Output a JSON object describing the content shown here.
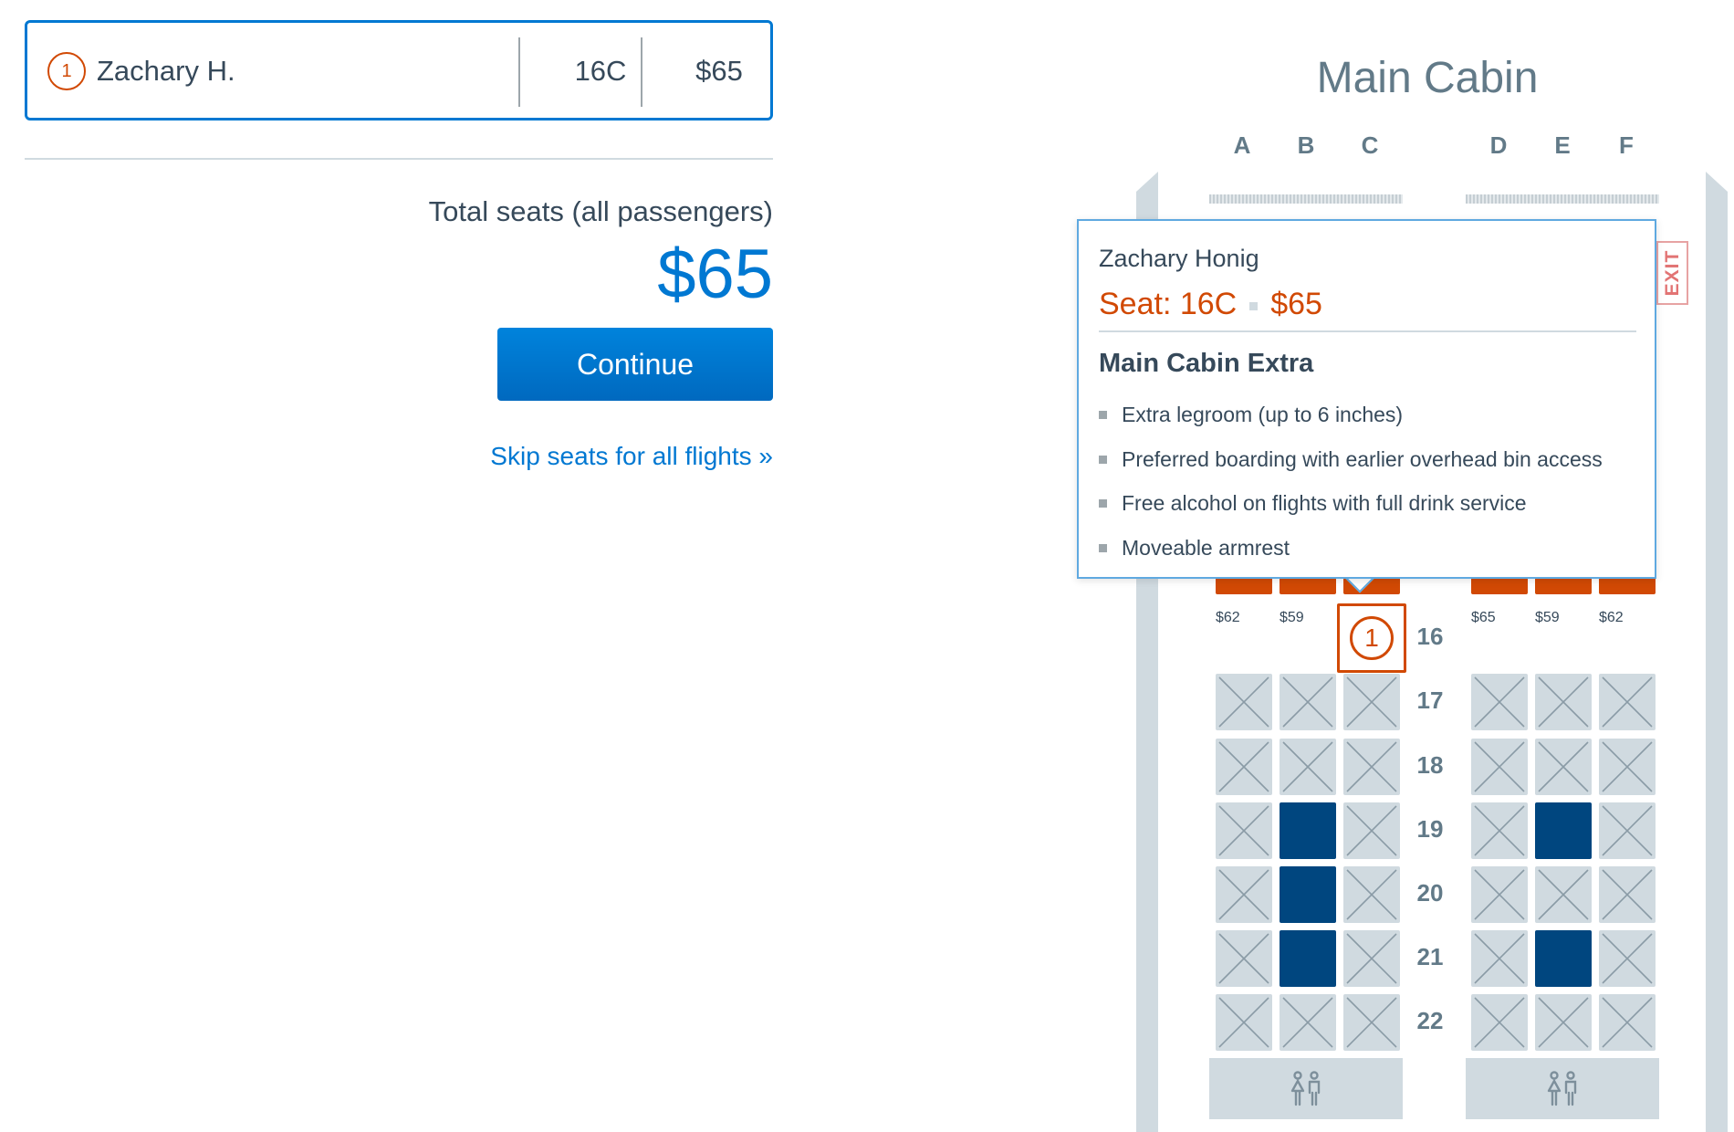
{
  "passenger": {
    "number": "1",
    "name": "Zachary H.",
    "seat": "16C",
    "price": "$65"
  },
  "summary": {
    "total_label": "Total seats (all passengers)",
    "total_amount": "$65",
    "continue_label": "Continue",
    "skip_label": "Skip seats for all flights »"
  },
  "seatmap": {
    "cabin_title": "Main Cabin",
    "columns": [
      "A",
      "B",
      "C",
      "D",
      "E",
      "F"
    ],
    "exit_label": "EXIT",
    "rows": [
      {
        "number": "16",
        "seats": [
          {
            "col": "A",
            "status": "available",
            "price": "$62"
          },
          {
            "col": "B",
            "status": "available",
            "price": "$59"
          },
          {
            "col": "C",
            "status": "selected",
            "passenger": "1"
          },
          {
            "col": "D",
            "status": "available",
            "price": "$65"
          },
          {
            "col": "E",
            "status": "available",
            "price": "$59"
          },
          {
            "col": "F",
            "status": "available",
            "price": "$62"
          }
        ]
      },
      {
        "number": "17",
        "seats": [
          {
            "col": "A",
            "status": "occupied"
          },
          {
            "col": "B",
            "status": "occupied"
          },
          {
            "col": "C",
            "status": "occupied"
          },
          {
            "col": "D",
            "status": "occupied"
          },
          {
            "col": "E",
            "status": "occupied"
          },
          {
            "col": "F",
            "status": "occupied"
          }
        ]
      },
      {
        "number": "18",
        "seats": [
          {
            "col": "A",
            "status": "occupied"
          },
          {
            "col": "B",
            "status": "occupied"
          },
          {
            "col": "C",
            "status": "occupied"
          },
          {
            "col": "D",
            "status": "occupied"
          },
          {
            "col": "E",
            "status": "occupied"
          },
          {
            "col": "F",
            "status": "occupied"
          }
        ]
      },
      {
        "number": "19",
        "seats": [
          {
            "col": "A",
            "status": "occupied"
          },
          {
            "col": "B",
            "status": "blocked"
          },
          {
            "col": "C",
            "status": "occupied"
          },
          {
            "col": "D",
            "status": "occupied"
          },
          {
            "col": "E",
            "status": "blocked"
          },
          {
            "col": "F",
            "status": "occupied"
          }
        ]
      },
      {
        "number": "20",
        "seats": [
          {
            "col": "A",
            "status": "occupied"
          },
          {
            "col": "B",
            "status": "blocked"
          },
          {
            "col": "C",
            "status": "occupied"
          },
          {
            "col": "D",
            "status": "occupied"
          },
          {
            "col": "E",
            "status": "occupied"
          },
          {
            "col": "F",
            "status": "occupied"
          }
        ]
      },
      {
        "number": "21",
        "seats": [
          {
            "col": "A",
            "status": "occupied"
          },
          {
            "col": "B",
            "status": "blocked"
          },
          {
            "col": "C",
            "status": "occupied"
          },
          {
            "col": "D",
            "status": "occupied"
          },
          {
            "col": "E",
            "status": "blocked"
          },
          {
            "col": "F",
            "status": "occupied"
          }
        ]
      },
      {
        "number": "22",
        "seats": [
          {
            "col": "A",
            "status": "occupied"
          },
          {
            "col": "B",
            "status": "occupied"
          },
          {
            "col": "C",
            "status": "occupied"
          },
          {
            "col": "D",
            "status": "occupied"
          },
          {
            "col": "E",
            "status": "occupied"
          },
          {
            "col": "F",
            "status": "occupied"
          }
        ]
      }
    ],
    "lavatory_icon": "restroom-icon"
  },
  "tooltip": {
    "passenger_name": "Zachary Honig",
    "seat_label": "Seat: 16C",
    "price": "$65",
    "class_name": "Main Cabin Extra",
    "features": [
      "Extra legroom (up to 6 inches)",
      "Preferred boarding with earlier overhead bin access",
      "Free alcohol on flights with full drink service",
      "Moveable armrest"
    ]
  },
  "colors": {
    "brand_blue": "#0078d2",
    "seat_available": "#d14904",
    "seat_blocked": "#00467f",
    "seat_occupied": "#d0dae0"
  }
}
